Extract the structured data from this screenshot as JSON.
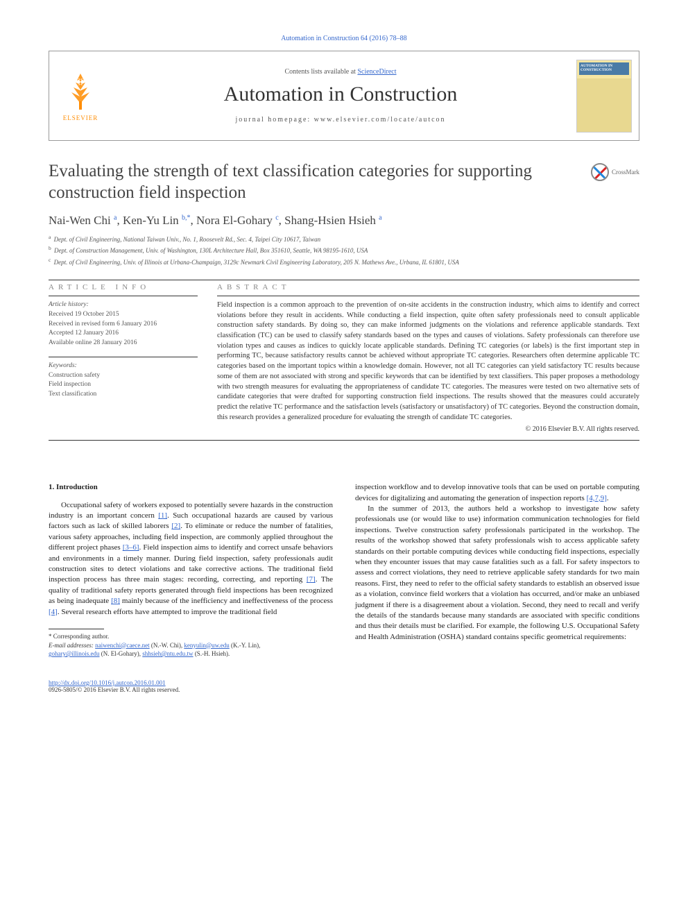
{
  "citation": "Automation in Construction 64 (2016) 78–88",
  "header": {
    "contents_prefix": "Contents lists available at ",
    "contents_link": "ScienceDirect",
    "journal": "Automation in Construction",
    "homepage_prefix": "journal homepage: ",
    "homepage_url": "www.elsevier.com/locate/autcon",
    "publisher": "ELSEVIER",
    "cover_title": "AUTOMATION IN CONSTRUCTION"
  },
  "crossmark": "CrossMark",
  "article": {
    "title": "Evaluating the strength of text classification categories for supporting construction field inspection",
    "authors_html": "Nai-Wen Chi <sup>a</sup>, Ken-Yu Lin <sup>b,*</sup>, Nora El-Gohary <sup>c</sup>, Shang-Hsien Hsieh <sup>a</sup>",
    "affiliations": {
      "a": "Dept. of Civil Engineering, National Taiwan Univ., No. 1, Roosevelt Rd., Sec. 4, Taipei City 10617, Taiwan",
      "b": "Dept. of Construction Management, Univ. of Washington, 130L Architecture Hall, Box 351610, Seattle, WA 98195-1610, USA",
      "c": "Dept. of Civil Engineering, Univ. of Illinois at Urbana-Champaign, 3129c Newmark Civil Engineering Laboratory, 205 N. Mathews Ave., Urbana, IL 61801, USA"
    }
  },
  "info": {
    "heading": "article info",
    "history_label": "Article history:",
    "received": "Received 19 October 2015",
    "revised": "Received in revised form 6 January 2016",
    "accepted": "Accepted 12 January 2016",
    "online": "Available online 28 January 2016",
    "keywords_label": "Keywords:",
    "keywords": [
      "Construction safety",
      "Field inspection",
      "Text classification"
    ]
  },
  "abstract": {
    "heading": "abstract",
    "text": "Field inspection is a common approach to the prevention of on-site accidents in the construction industry, which aims to identify and correct violations before they result in accidents. While conducting a field inspection, quite often safety professionals need to consult applicable construction safety standards. By doing so, they can make informed judgments on the violations and reference applicable standards. Text classification (TC) can be used to classify safety standards based on the types and causes of violations. Safety professionals can therefore use violation types and causes as indices to quickly locate applicable standards. Defining TC categories (or labels) is the first important step in performing TC, because satisfactory results cannot be achieved without appropriate TC categories. Researchers often determine applicable TC categories based on the important topics within a knowledge domain. However, not all TC categories can yield satisfactory TC results because some of them are not associated with strong and specific keywords that can be identified by text classifiers. This paper proposes a methodology with two strength measures for evaluating the appropriateness of candidate TC categories. The measures were tested on two alternative sets of candidate categories that were drafted for supporting construction field inspections. The results showed that the measures could accurately predict the relative TC performance and the satisfaction levels (satisfactory or unsatisfactory) of TC categories. Beyond the construction domain, this research provides a generalized procedure for evaluating the strength of candidate TC categories.",
    "copyright": "© 2016 Elsevier B.V. All rights reserved."
  },
  "body": {
    "section1_heading": "1. Introduction",
    "col1_p1_a": "Occupational safety of workers exposed to potentially severe hazards in the construction industry is an important concern ",
    "col1_ref1": "[1]",
    "col1_p1_b": ". Such occupational hazards are caused by various factors such as lack of skilled laborers ",
    "col1_ref2": "[2]",
    "col1_p1_c": ". To eliminate or reduce the number of fatalities, various safety approaches, including field inspection, are commonly applied throughout the different project phases ",
    "col1_ref3": "[3–6]",
    "col1_p1_d": ". Field inspection aims to identify and correct unsafe behaviors and environments in a timely manner. During field inspection, safety professionals audit construction sites to detect violations and take corrective actions. The traditional field inspection process has three main stages: recording, correcting, and reporting ",
    "col1_ref7": "[7]",
    "col1_p1_e": ". The quality of traditional safety reports generated through field inspections has been recognized as being inadequate ",
    "col1_ref8": "[8]",
    "col1_p1_f": " mainly because of the inefficiency and ineffectiveness of the process ",
    "col1_ref4": "[4]",
    "col1_p1_g": ". Several research efforts have attempted to improve the traditional field",
    "col2_p1_a": "inspection workflow and to develop innovative tools that can be used on portable computing devices for digitalizing and automating the generation of inspection reports ",
    "col2_ref479": "[4,7,9]",
    "col2_p1_b": ".",
    "col2_p2": "In the summer of 2013, the authors held a workshop to investigate how safety professionals use (or would like to use) information communication technologies for field inspections. Twelve construction safety professionals participated in the workshop. The results of the workshop showed that safety professionals wish to access applicable safety standards on their portable computing devices while conducting field inspections, especially when they encounter issues that may cause fatalities such as a fall. For safety inspectors to assess and correct violations, they need to retrieve applicable safety standards for two main reasons. First, they need to refer to the official safety standards to establish an observed issue as a violation, convince field workers that a violation has occurred, and/or make an unbiased judgment if there is a disagreement about a violation. Second, they need to recall and verify the details of the standards because many standards are associated with specific conditions and thus their details must be clarified. For example, the following U.S. Occupational Safety and Health Administration (OSHA) standard contains specific geometrical requirements:"
  },
  "footnotes": {
    "corresponding": "* Corresponding author.",
    "email_label": "E-mail addresses: ",
    "emails": [
      {
        "addr": "naiwenchi@caece.net",
        "who": " (N.-W. Chi), "
      },
      {
        "addr": "kenyulin@uw.edu",
        "who": " (K.-Y. Lin), "
      },
      {
        "addr": "gohary@illinois.edu",
        "who": " (N. El-Gohary), "
      },
      {
        "addr": "shhsieh@ntu.edu.tw",
        "who": " (S.-H. Hsieh)."
      }
    ]
  },
  "footer": {
    "doi": "http://dx.doi.org/10.1016/j.autcon.2016.01.001",
    "issn_line": "0926-5805/© 2016 Elsevier B.V. All rights reserved."
  },
  "colors": {
    "link": "#3366cc",
    "publisher": "#ff8c00",
    "text": "#222222",
    "muted": "#555555"
  }
}
